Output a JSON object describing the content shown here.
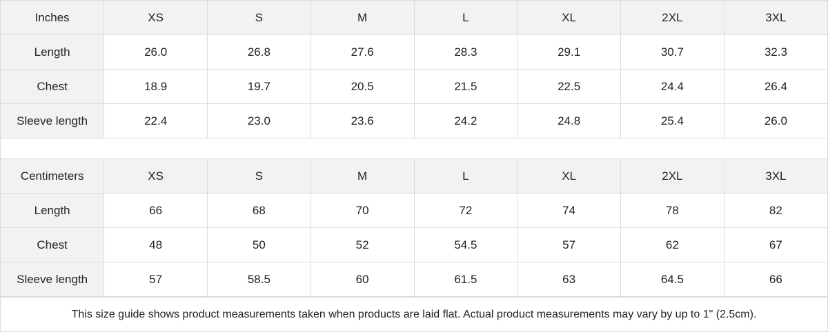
{
  "tables": [
    {
      "unit": "Inches",
      "sizes": [
        "XS",
        "S",
        "M",
        "L",
        "XL",
        "2XL",
        "3XL"
      ],
      "rows": [
        {
          "label": "Length",
          "values": [
            "26.0",
            "26.8",
            "27.6",
            "28.3",
            "29.1",
            "30.7",
            "32.3"
          ]
        },
        {
          "label": "Chest",
          "values": [
            "18.9",
            "19.7",
            "20.5",
            "21.5",
            "22.5",
            "24.4",
            "26.4"
          ]
        },
        {
          "label": "Sleeve length",
          "values": [
            "22.4",
            "23.0",
            "23.6",
            "24.2",
            "24.8",
            "25.4",
            "26.0"
          ]
        }
      ]
    },
    {
      "unit": "Centimeters",
      "sizes": [
        "XS",
        "S",
        "M",
        "L",
        "XL",
        "2XL",
        "3XL"
      ],
      "rows": [
        {
          "label": "Length",
          "values": [
            "66",
            "68",
            "70",
            "72",
            "74",
            "78",
            "82"
          ]
        },
        {
          "label": "Chest",
          "values": [
            "48",
            "50",
            "52",
            "54.5",
            "57",
            "62",
            "67"
          ]
        },
        {
          "label": "Sleeve length",
          "values": [
            "57",
            "58.5",
            "60",
            "61.5",
            "63",
            "64.5",
            "66"
          ]
        }
      ]
    }
  ],
  "note": "This size guide shows product measurements taken when products are laid flat.  Actual product measurements may vary by up to 1\" (2.5cm).",
  "colors": {
    "header_bg": "#f2f2f2",
    "border": "#dcdcdc"
  }
}
